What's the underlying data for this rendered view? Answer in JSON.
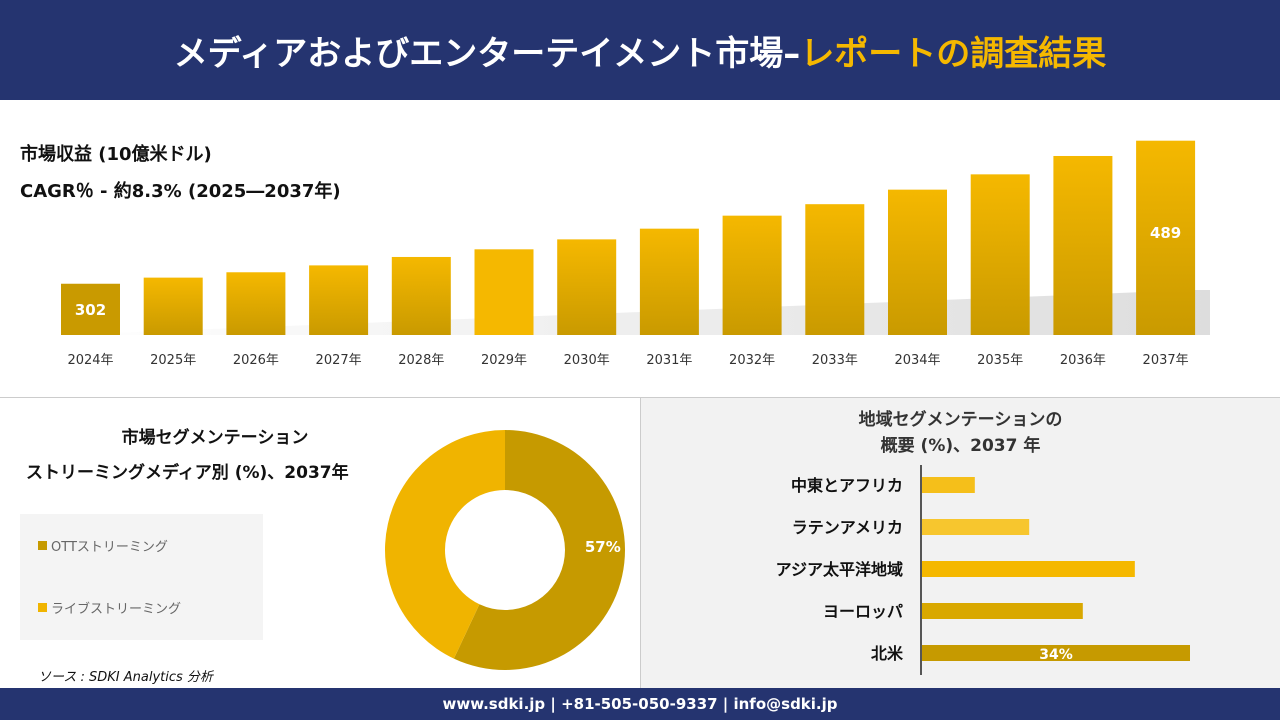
{
  "header": {
    "title_main": "メディアおよびエンターテイメント市場–",
    "title_accent": "レポートの調査結果"
  },
  "revenue": {
    "label": "市場収益 (10億米ドル)",
    "cagr": "CAGR％ - 約8.3% (2025―2037年)"
  },
  "segment": {
    "title_line1": "市場セグメンテーション",
    "title_line2": "ストリーミングメディア別 (%)、2037年"
  },
  "region": {
    "title_line1": "地域セグメンテーションの",
    "title_line2": "概要 (%)、2037 年"
  },
  "source": "ソース : SDKI Analytics 分析",
  "footer": "www.sdki.jp | +81-505-050-9337 | info@sdki.jp",
  "chart_data": [
    {
      "type": "bar",
      "categories": [
        "2024年",
        "2025年",
        "2026年",
        "2027年",
        "2028年",
        "2029年",
        "2030年",
        "2031年",
        "2032年",
        "2033年",
        "2034年",
        "2035年",
        "2036年",
        "2037年"
      ],
      "values": [
        302,
        310,
        317,
        326,
        337,
        347,
        360,
        374,
        391,
        406,
        425,
        445,
        469,
        489
      ],
      "data_labels": {
        "0": "302",
        "13": "489"
      },
      "colors": [
        "#c99a00",
        "#f5b800"
      ]
    },
    {
      "type": "pie",
      "donut": true,
      "categories": [
        "OTTストリーミング",
        "ライブストリーミング"
      ],
      "values": [
        57,
        43
      ],
      "data_labels": [
        "57%",
        ""
      ],
      "colors": [
        "#c69a00",
        "#f0b400"
      ],
      "legend": "left"
    },
    {
      "type": "bar",
      "orientation": "horizontal",
      "categories": [
        "中東とアフリカ",
        "ラテンアメリカ",
        "アジア太平洋地域",
        "ヨーロッパ",
        "北米"
      ],
      "values": [
        6.7,
        13.6,
        27,
        20.4,
        34
      ],
      "data_labels": [
        "",
        "",
        "",
        "",
        "34%"
      ],
      "colors": [
        "#f5bf1a",
        "#f7c62e",
        "#f5b800",
        "#d9a800",
        "#c69a00"
      ]
    }
  ]
}
